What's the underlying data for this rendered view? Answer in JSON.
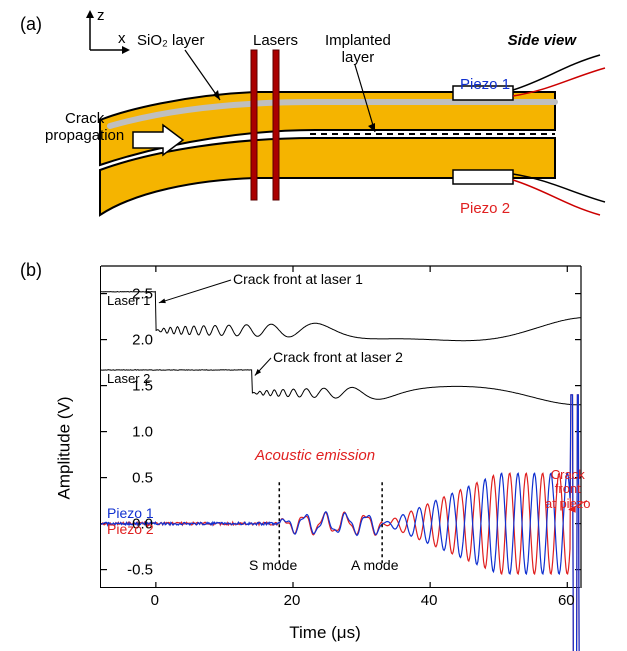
{
  "panelA": {
    "label": "(a)",
    "axes": {
      "z": "z",
      "x": "x"
    },
    "labels": {
      "sio2": "SiO₂ layer",
      "lasers": "Lasers",
      "implanted": "Implanted\nlayer",
      "sideview": "Side view",
      "crackprop": "Crack\npropagation",
      "piezo1": "Piezo 1",
      "piezo2": "Piezo  2"
    },
    "colors": {
      "wafer_fill": "#f5b400",
      "wafer_stroke": "#000000",
      "sio2_layer": "#bfbfbf",
      "laser": "#aa0000",
      "piezo_box": "#ffffff",
      "piezo1_text": "#1030d0",
      "piezo2_text": "#e02020",
      "wire1": "#000000",
      "wire2": "#cc0000"
    }
  },
  "panelB": {
    "label": "(b)",
    "xlabel": "Time (μs)",
    "ylabel": "Amplitude (V)",
    "xlim": [
      -8,
      62
    ],
    "ylim": [
      -0.7,
      2.8
    ],
    "xticks": [
      0,
      20,
      40,
      60
    ],
    "yticks": [
      -0.5,
      0.0,
      0.5,
      1.0,
      1.5,
      2.0,
      2.5
    ],
    "tick_len": 6,
    "colors": {
      "laser_trace": "#000000",
      "piezo1": "#1030d0",
      "piezo2": "#e02020",
      "axis": "#000000",
      "annot_arrow": "#000000"
    },
    "annotations": {
      "cf_laser1": "Crack front at laser 1",
      "cf_laser2": "Crack front at laser 2",
      "laser1": "Laser 1",
      "laser2": "Laser 2",
      "acoustic": "Acoustic emission",
      "smode": "S mode",
      "amode": "A mode",
      "piezo1": "Piezo 1",
      "piezo2": "Piezo 2",
      "crack_piezo": "Crack\nfront\nat piezo"
    },
    "smode_x": 18,
    "amode_x": 33,
    "laser1": {
      "baseline": 2.52,
      "drop_x": 0,
      "drop_to": 2.1,
      "osc_amp_start": 0.04,
      "osc_period_start": 0.9,
      "osc_amp_end": 0.14,
      "osc_period_end": 5.5
    },
    "laser2": {
      "baseline": 1.67,
      "drop_x": 14,
      "drop_to": 1.42,
      "osc_amp_start": 0.03,
      "osc_period_start": 0.9,
      "osc_amp_end": 0.13,
      "osc_period_end": 5.5
    },
    "piezo": {
      "baseline": 0.0,
      "noise_amp": 0.03,
      "start_x": 18,
      "smode_amp": 0.1,
      "amode_start_x": 33,
      "amode_amp_max": 0.55,
      "amode_period": 2.4,
      "amode_growth_end_x": 50,
      "spike_x": 60.5
    }
  }
}
